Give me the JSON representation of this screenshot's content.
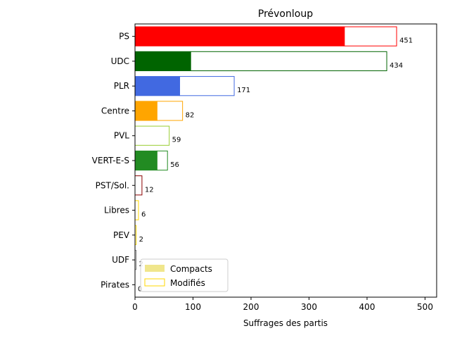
{
  "chart_data": {
    "type": "bar",
    "orientation": "horizontal",
    "stacked": true,
    "title": "Prévonloup",
    "xlabel": "Suffrages des partis",
    "ylabel": "",
    "xlim": [
      0,
      520
    ],
    "xticks": [
      0,
      100,
      200,
      300,
      400,
      500
    ],
    "categories": [
      "PS",
      "UDC",
      "PLR",
      "Centre",
      "PVL",
      "VERT-E-S",
      "PST/Sol.",
      "Libres",
      "PEV",
      "UDF",
      "Pirates"
    ],
    "colors": [
      "#ff0000",
      "#006400",
      "#4169e1",
      "#ffa500",
      "#9acd32",
      "#228b22",
      "#8b0000",
      "#ffd700",
      "#ffd700",
      "#808080",
      "#808080"
    ],
    "series": [
      {
        "name": "Compacts",
        "values": [
          361,
          96,
          77,
          38,
          0,
          38,
          0,
          0,
          0,
          0,
          0
        ]
      },
      {
        "name": "Modifiés",
        "values": [
          90,
          338,
          94,
          44,
          59,
          18,
          12,
          6,
          2,
          2,
          0
        ]
      }
    ],
    "totals": [
      451,
      434,
      171,
      82,
      59,
      56,
      12,
      6,
      2,
      2,
      0
    ],
    "legend": {
      "position": "lower-left",
      "entries": [
        {
          "label": "Compacts",
          "color": "#f0e68c"
        },
        {
          "label": "Modifiés",
          "color": "#ffd700"
        }
      ]
    },
    "grid": false
  }
}
